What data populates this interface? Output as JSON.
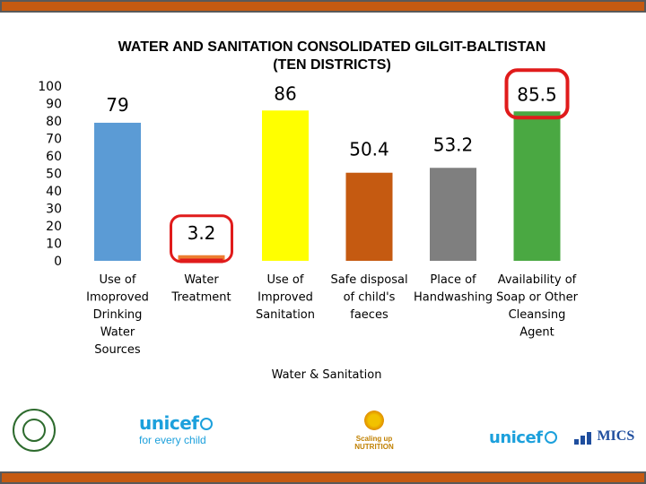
{
  "chart_data": {
    "type": "bar",
    "title_lines": [
      "WATER AND SANITATION CONSOLIDATED GILGIT-BALTISTAN",
      "(TEN DISTRICTS)"
    ],
    "xlabel": "Water & Sanitation",
    "ylabel": "",
    "ylim": [
      0,
      100
    ],
    "yticks": [
      0,
      10,
      20,
      30,
      40,
      50,
      60,
      70,
      80,
      90,
      100
    ],
    "categories": [
      [
        "Use of",
        "Imoproved",
        "Drinking",
        "Water",
        "Sources"
      ],
      [
        "Water",
        "Treatment"
      ],
      [
        "Use of",
        "Improved",
        "Sanitation"
      ],
      [
        "Safe disposal",
        "of child's",
        "faeces"
      ],
      [
        "Place of",
        "Handwashing"
      ],
      [
        "Availability of",
        "Soap or Other",
        "Cleansing",
        "Agent"
      ]
    ],
    "values": [
      79,
      3.2,
      86,
      50.4,
      53.2,
      85.5
    ],
    "value_labels": [
      "79",
      "3.2",
      "86",
      "50.4",
      "53.2",
      "85.5"
    ],
    "colors": [
      "#5b9bd5",
      "#ed7d31",
      "#ffff00",
      "#c55a11",
      "#7f7f7f",
      "#4aa842"
    ],
    "highlighted": [
      1,
      5
    ],
    "highlight_color": "#e01b1b",
    "grid": false,
    "legend": "none"
  },
  "logos": {
    "unicef_left": "unicef",
    "unicef_left_tagline": "for every child",
    "scaling_up": "Scaling up",
    "scaling_up_sub": "NUTRITION",
    "unicef_right": "unicef",
    "mics": "MICS",
    "emblem_icon": "government-emblem-icon",
    "globe_icon": "unicef-globe-icon"
  },
  "colors": {
    "frame": "#c55a11",
    "unicef": "#1ca0dc",
    "mics": "#1f4e9e"
  }
}
